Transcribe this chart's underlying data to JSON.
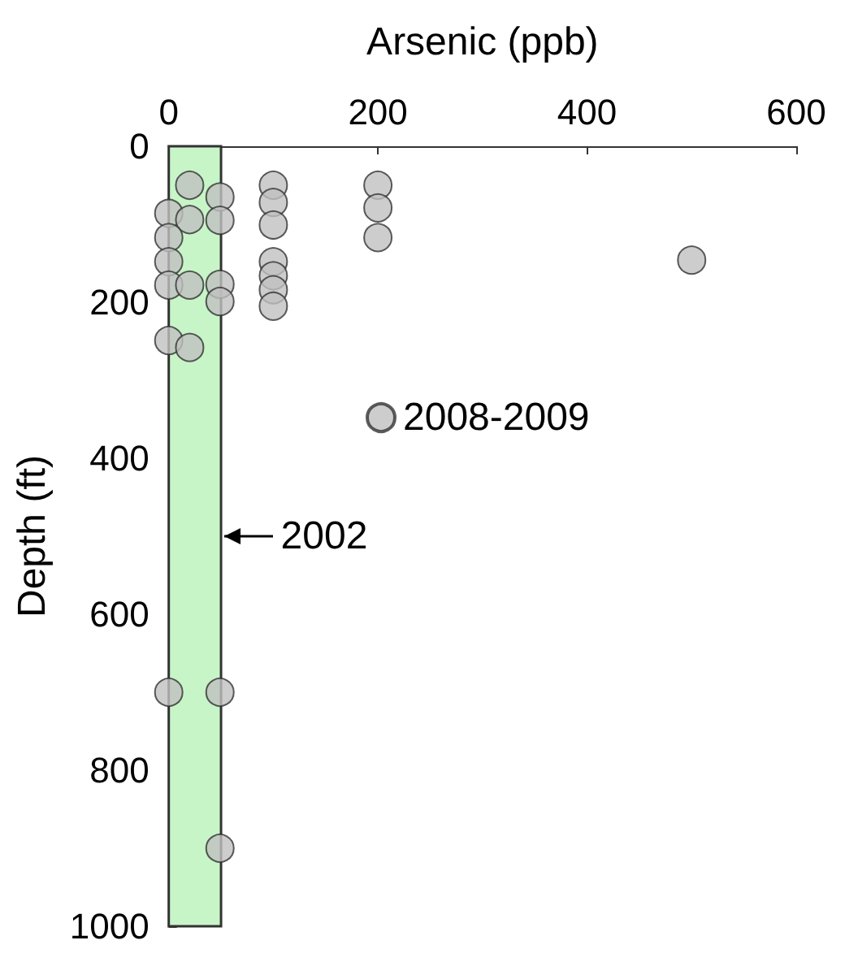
{
  "chart_data": {
    "type": "scatter",
    "xlabel": "Arsenic (ppb)",
    "ylabel": "Depth (ft)",
    "xlim": [
      0,
      600
    ],
    "xticks": [
      0,
      200,
      400,
      600
    ],
    "ylim": [
      1000,
      0
    ],
    "yticks": [
      0,
      200,
      400,
      600,
      800,
      1000
    ],
    "grid": false,
    "legend": "right",
    "marker": "circle",
    "bands": [
      {
        "axis": "x",
        "from": 0,
        "to": 50,
        "label": "2002",
        "color": "#c8f5c8"
      }
    ],
    "series": [
      {
        "name": "2008-2009",
        "color": "#c0c0c0",
        "x": [
          20,
          0,
          20,
          0,
          0,
          0,
          20,
          0,
          20,
          49,
          49,
          49,
          49,
          100,
          100,
          100,
          100,
          100,
          100,
          100,
          200,
          200,
          200,
          500,
          0,
          49,
          49
        ],
        "values": [
          50,
          86,
          94,
          117,
          148,
          178,
          178,
          249,
          258,
          65,
          95,
          177,
          199,
          50,
          72,
          101,
          148,
          166,
          184,
          205,
          50,
          79,
          117,
          146,
          700,
          700,
          900
        ]
      }
    ]
  }
}
